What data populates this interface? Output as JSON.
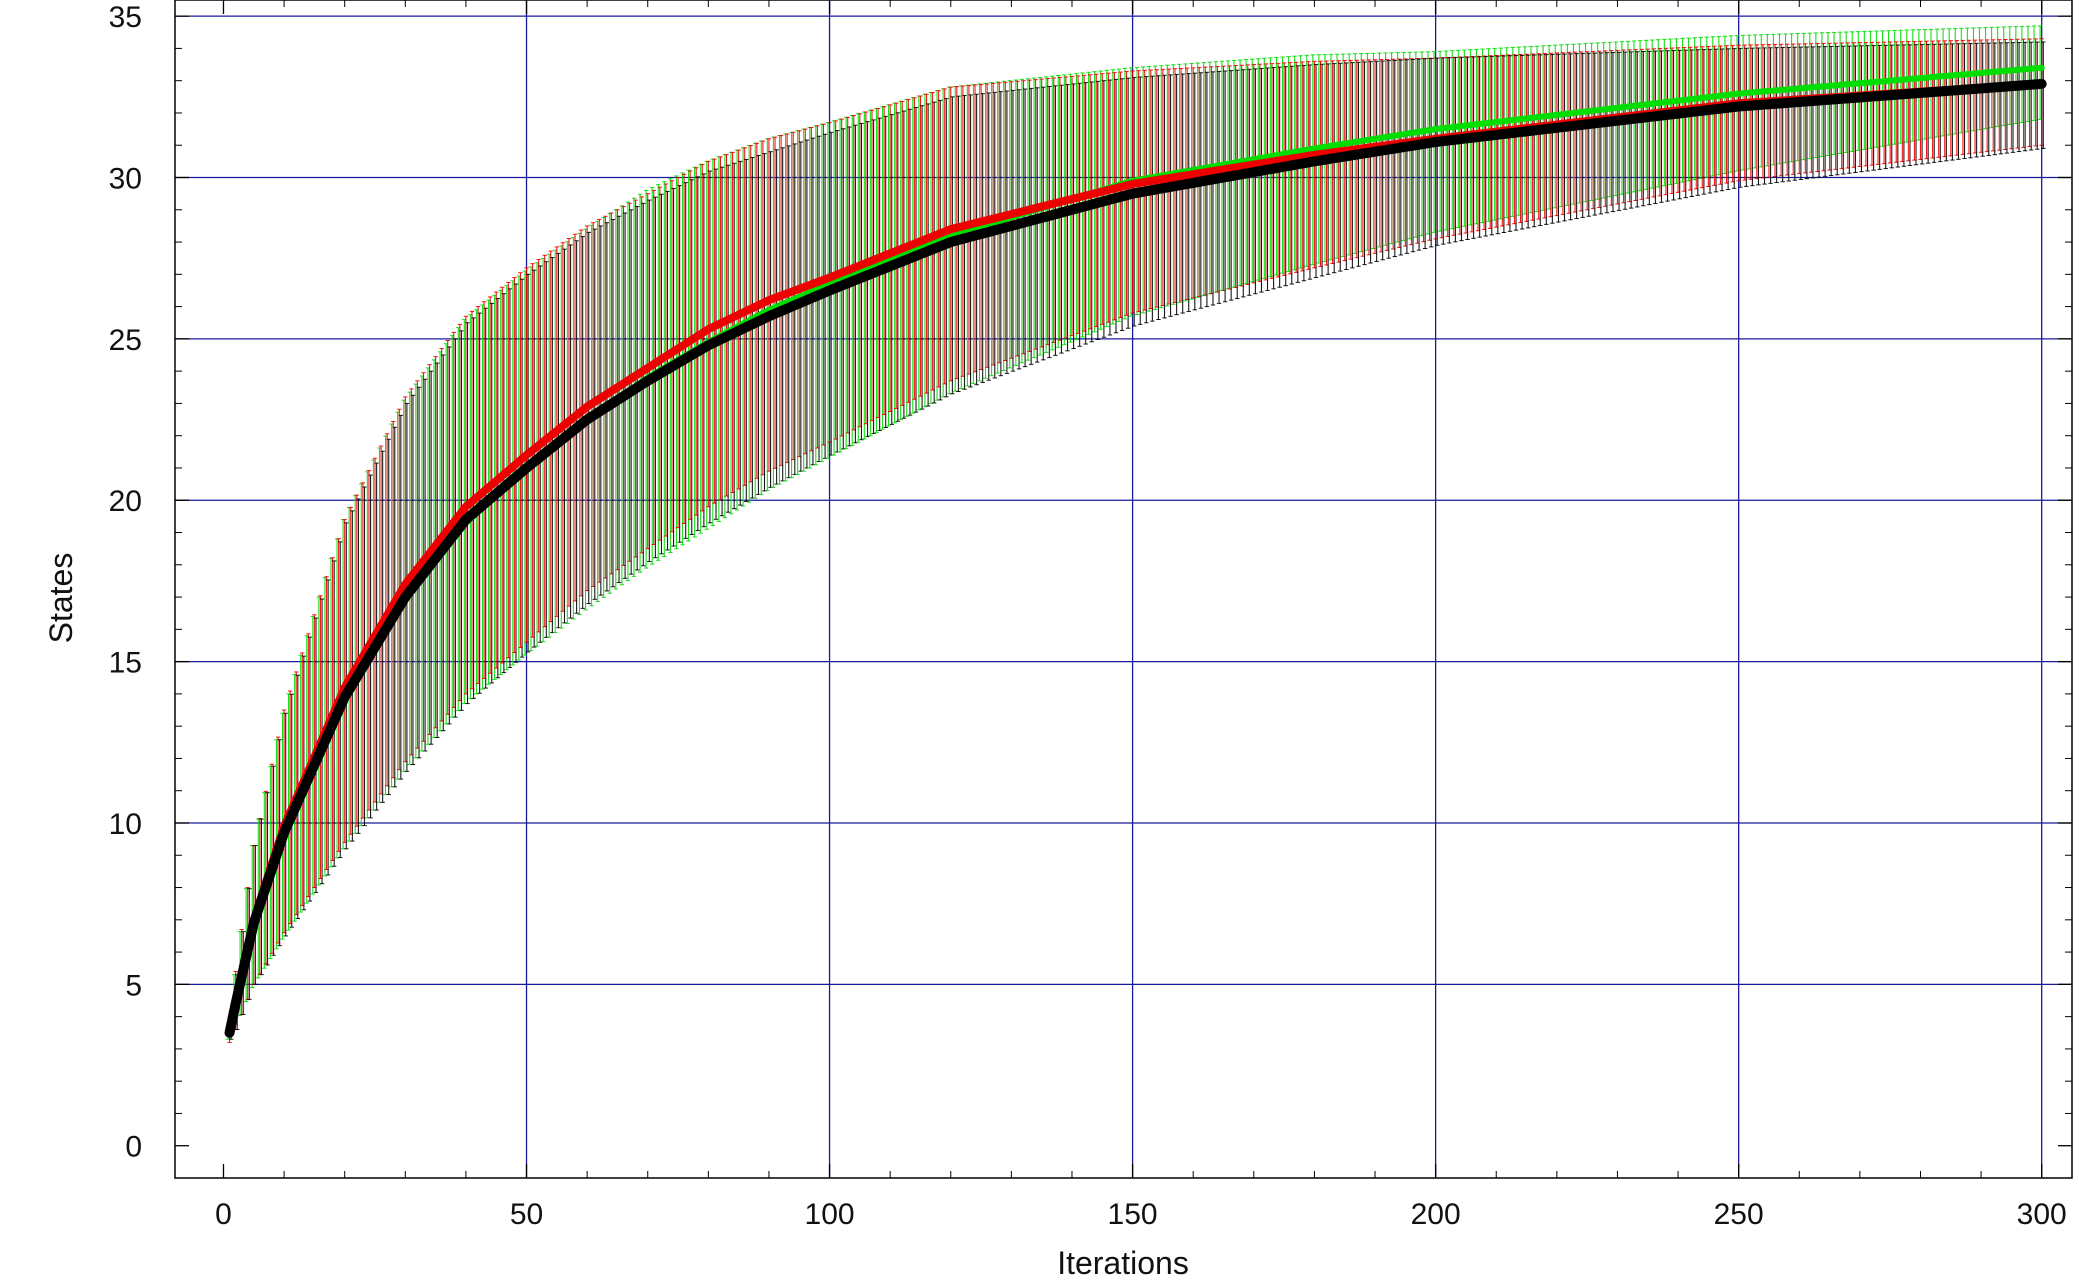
{
  "chart_data": {
    "type": "line",
    "title": "",
    "xlabel": "Iterations",
    "ylabel": "States",
    "xlim": [
      -8,
      305
    ],
    "ylim": [
      -1,
      35.5
    ],
    "x_ticks": [
      0,
      50,
      100,
      150,
      200,
      250,
      300
    ],
    "y_ticks": [
      0,
      5,
      10,
      15,
      20,
      25,
      30,
      35
    ],
    "x_tick_labels": [
      "0",
      "50",
      "100",
      "150",
      "200",
      "250",
      "300"
    ],
    "y_tick_labels": [
      "0",
      "5",
      "10",
      "15",
      "20",
      "25",
      "30",
      "35"
    ],
    "grid": true,
    "grid_color": "#1a1a9c",
    "error_bars": true,
    "series": [
      {
        "color": "#00dd00",
        "x": [
          1,
          2,
          5,
          10,
          20,
          30,
          40,
          50,
          60,
          70,
          80,
          90,
          100,
          120,
          150,
          180,
          200,
          250,
          300
        ],
        "values": [
          3.5,
          4.4,
          6.8,
          9.6,
          13.8,
          16.9,
          19.3,
          21.0,
          22.5,
          23.8,
          24.9,
          25.9,
          26.7,
          28.2,
          29.9,
          30.9,
          31.5,
          32.6,
          33.4
        ],
        "err_low": [
          0.2,
          0.8,
          1.9,
          3.2,
          4.6,
          5.3,
          5.6,
          5.8,
          5.9,
          5.9,
          5.8,
          5.6,
          5.4,
          4.9,
          4.2,
          3.6,
          3.2,
          2.4,
          1.6
        ],
        "err_high": [
          0.2,
          0.9,
          2.5,
          3.8,
          5.6,
          6.2,
          6.3,
          6.1,
          5.9,
          5.8,
          5.6,
          5.3,
          5.0,
          4.6,
          3.5,
          2.9,
          2.4,
          1.8,
          1.3
        ]
      },
      {
        "color": "#ee0000",
        "x": [
          1,
          2,
          5,
          10,
          20,
          30,
          40,
          50,
          60,
          70,
          80,
          90,
          100,
          120,
          150,
          180,
          200,
          250,
          300
        ],
        "values": [
          3.5,
          4.5,
          7.0,
          9.9,
          14.2,
          17.4,
          19.8,
          21.4,
          22.9,
          24.1,
          25.3,
          26.2,
          26.9,
          28.4,
          29.8,
          30.7,
          31.2,
          32.3,
          32.9
        ],
        "err_low": [
          0.3,
          0.9,
          2.0,
          3.3,
          4.8,
          5.5,
          5.8,
          5.8,
          5.7,
          5.6,
          5.5,
          5.3,
          5.1,
          4.7,
          4.0,
          3.5,
          3.1,
          2.4,
          1.9
        ],
        "err_high": [
          0.2,
          0.9,
          2.3,
          3.6,
          5.2,
          5.8,
          5.9,
          5.8,
          5.6,
          5.4,
          5.2,
          5.0,
          4.8,
          4.4,
          3.5,
          2.9,
          2.5,
          1.8,
          1.4
        ]
      },
      {
        "color": "#000000",
        "x": [
          1,
          2,
          5,
          10,
          20,
          30,
          40,
          50,
          60,
          70,
          80,
          90,
          100,
          120,
          150,
          180,
          200,
          250,
          300
        ],
        "values": [
          3.5,
          4.4,
          6.9,
          9.7,
          13.9,
          17.0,
          19.4,
          21.0,
          22.5,
          23.7,
          24.8,
          25.7,
          26.5,
          28.0,
          29.5,
          30.5,
          31.1,
          32.2,
          32.9
        ],
        "err_low": [
          0.2,
          0.8,
          1.9,
          3.2,
          4.7,
          5.4,
          5.7,
          5.7,
          5.7,
          5.6,
          5.5,
          5.3,
          5.1,
          4.7,
          4.1,
          3.6,
          3.2,
          2.5,
          2.0
        ],
        "err_high": [
          0.2,
          0.9,
          2.4,
          3.7,
          5.4,
          6.0,
          6.1,
          6.0,
          5.8,
          5.6,
          5.4,
          5.1,
          4.9,
          4.5,
          3.6,
          3.0,
          2.6,
          1.8,
          1.3
        ]
      }
    ]
  }
}
